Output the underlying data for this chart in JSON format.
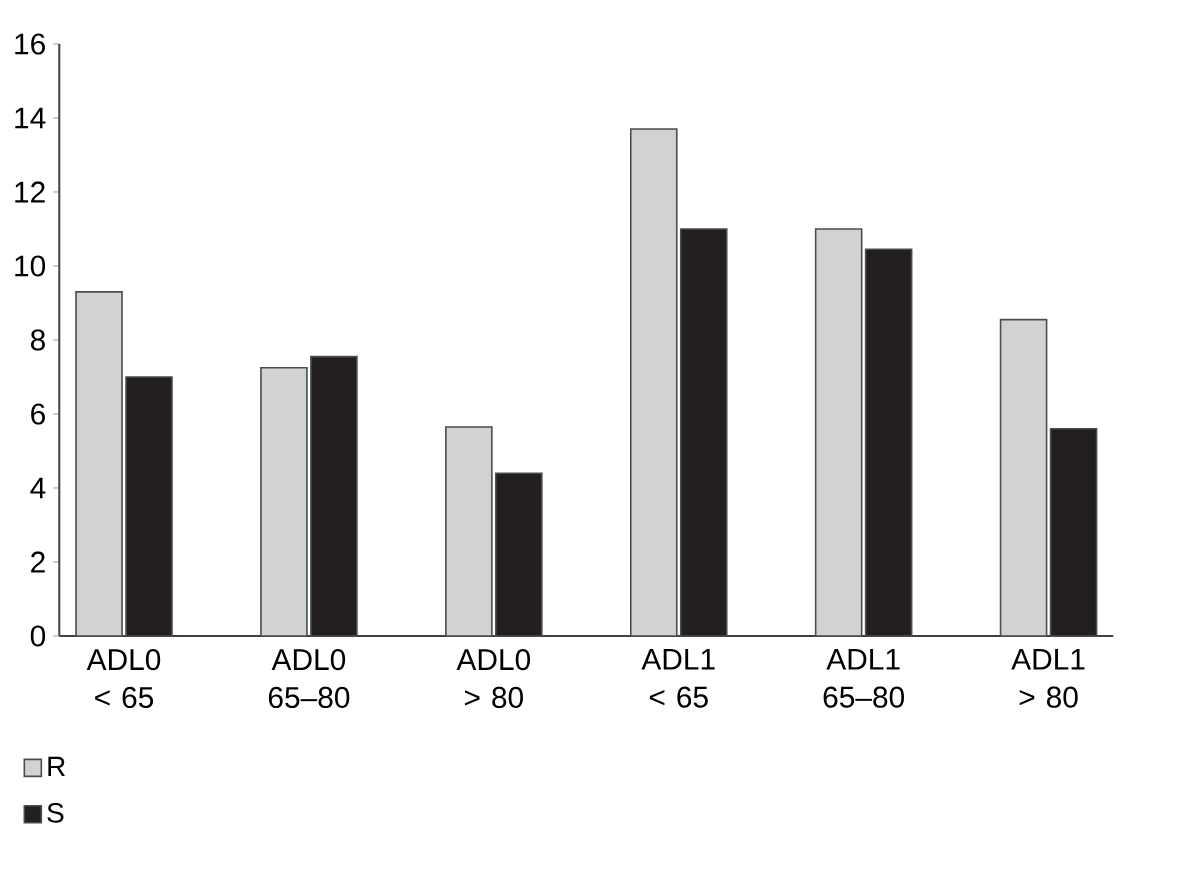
{
  "chart_data": {
    "type": "bar",
    "categories": [
      "ADL0 < 65",
      "ADL0 65–80",
      "ADL0 > 80",
      "ADL1 < 65",
      "ADL1 65–80",
      "ADL1 > 80"
    ],
    "series": [
      {
        "name": "R",
        "color": "#d1d2d4",
        "values": [
          9.3,
          7.25,
          5.65,
          13.7,
          11.0,
          8.55
        ]
      },
      {
        "name": "S",
        "color": "#231f20",
        "values": [
          7.0,
          7.55,
          4.4,
          11.0,
          10.45,
          5.6
        ]
      }
    ],
    "ylim": [
      0,
      16
    ],
    "yticks": [
      0,
      2,
      4,
      6,
      8,
      10,
      12,
      14,
      16
    ],
    "legend": "bottom left"
  }
}
